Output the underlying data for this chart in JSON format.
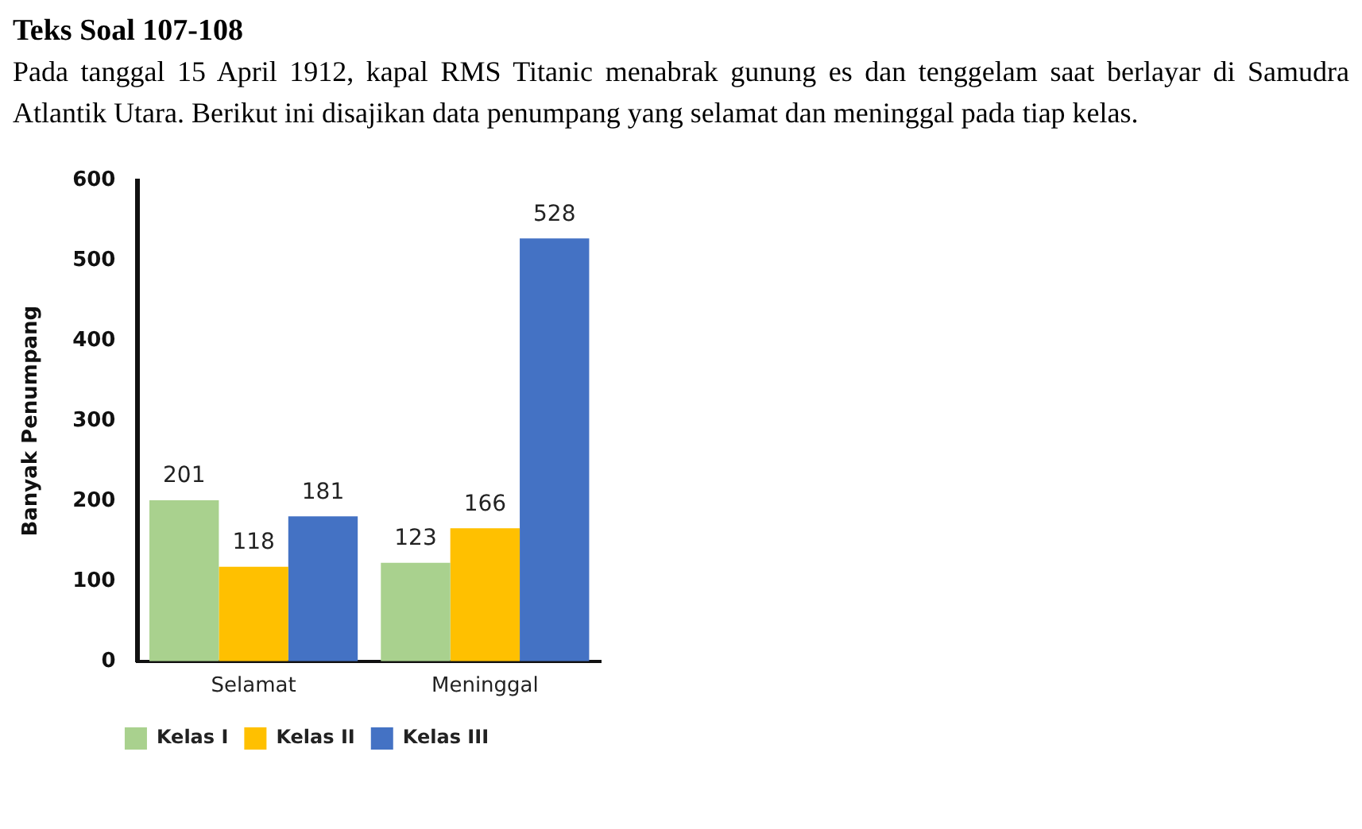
{
  "chart_data": {
    "type": "bar",
    "title": "Teks Soal 107-108",
    "subtitle": "Pada tanggal 15 April 1912, kapal RMS Titanic menabrak gunung es dan tenggelam saat berlayar di Samudra Atlantik Utara. Berikut ini disajikan data penumpang yang selamat dan meninggal pada tiap kelas.",
    "ylabel": "Banyak Penumpang",
    "categories": [
      "Selamat",
      "Meninggal"
    ],
    "series": [
      {
        "name": "Kelas I",
        "color": "#a9d18e",
        "values": [
          201,
          123
        ]
      },
      {
        "name": "Kelas II",
        "color": "#ffc000",
        "values": [
          118,
          166
        ]
      },
      {
        "name": "Kelas III",
        "color": "#4472c4",
        "values": [
          181,
          528
        ]
      }
    ],
    "ylim": [
      0,
      600
    ],
    "yticks": [
      0,
      100,
      200,
      300,
      400,
      500,
      600
    ],
    "data_labels": true,
    "legend": "bottom"
  }
}
